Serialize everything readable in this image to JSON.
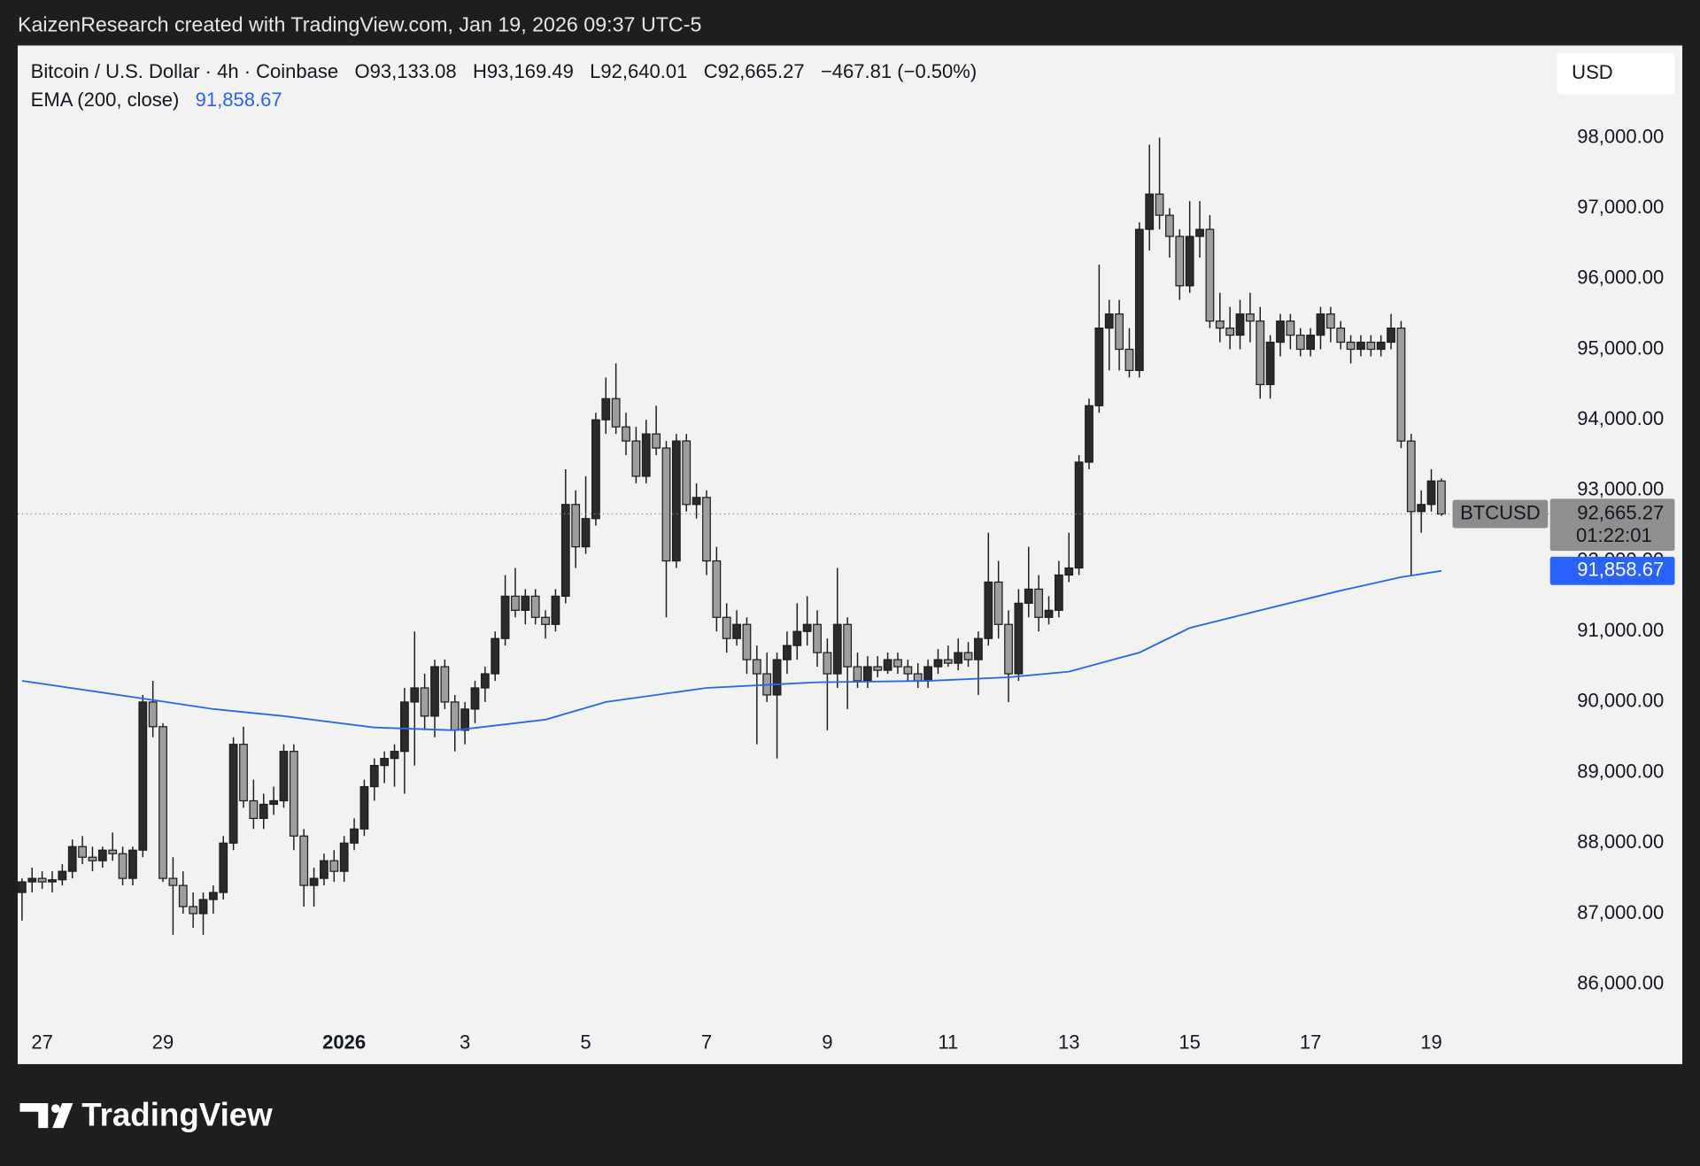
{
  "header": "KaizenResearch created with TradingView.com, Jan 19, 2026 09:37 UTC-5",
  "brand": "TradingView",
  "currency": "USD",
  "chart_data": {
    "type": "candlestick",
    "legend": {
      "title": "Bitcoin / U.S. Dollar · 4h · Coinbase",
      "open": "O93,133.08",
      "high": "H93,169.49",
      "low": "L92,640.01",
      "close": "C92,665.27",
      "change": "−467.81 (−0.50%)"
    },
    "symbol": "BTCUSD",
    "last_price_label": "92,665.27",
    "countdown": "01:22:01",
    "up_color": "#2b2b2b",
    "down_color": "#9e9e9e",
    "candles": [
      [
        87300,
        87500,
        86900,
        87450
      ],
      [
        87450,
        87650,
        87300,
        87500
      ],
      [
        87500,
        87600,
        87350,
        87450
      ],
      [
        87450,
        87600,
        87300,
        87480
      ],
      [
        87480,
        87700,
        87400,
        87600
      ],
      [
        87600,
        88050,
        87500,
        87950
      ],
      [
        87950,
        88100,
        87700,
        87800
      ],
      [
        87800,
        87950,
        87600,
        87750
      ],
      [
        87750,
        87950,
        87650,
        87900
      ],
      [
        87900,
        88150,
        87750,
        87850
      ],
      [
        87850,
        87950,
        87400,
        87500
      ],
      [
        87500,
        87950,
        87400,
        87900
      ],
      [
        87900,
        90100,
        87800,
        90000
      ],
      [
        90000,
        90300,
        89500,
        89650
      ],
      [
        89650,
        89700,
        87450,
        87500
      ],
      [
        87500,
        87800,
        86700,
        87400
      ],
      [
        87400,
        87600,
        87000,
        87100
      ],
      [
        87100,
        87300,
        86800,
        87000
      ],
      [
        87000,
        87300,
        86700,
        87200
      ],
      [
        87200,
        87400,
        87000,
        87300
      ],
      [
        87300,
        88100,
        87200,
        88000
      ],
      [
        88000,
        89500,
        87900,
        89400
      ],
      [
        89400,
        89650,
        88500,
        88600
      ],
      [
        88600,
        88900,
        88200,
        88350
      ],
      [
        88350,
        88700,
        88200,
        88550
      ],
      [
        88550,
        88800,
        88400,
        88600
      ],
      [
        88600,
        89400,
        88500,
        89300
      ],
      [
        89300,
        89400,
        87900,
        88100
      ],
      [
        88100,
        88200,
        87100,
        87400
      ],
      [
        87400,
        87650,
        87100,
        87500
      ],
      [
        87500,
        87850,
        87400,
        87750
      ],
      [
        87750,
        87900,
        87450,
        87600
      ],
      [
        87600,
        88100,
        87450,
        88000
      ],
      [
        88000,
        88350,
        87900,
        88200
      ],
      [
        88200,
        88900,
        88100,
        88800
      ],
      [
        88800,
        89200,
        88600,
        89100
      ],
      [
        89100,
        89300,
        88850,
        89200
      ],
      [
        89200,
        89400,
        88800,
        89300
      ],
      [
        89300,
        90200,
        88700,
        90000
      ],
      [
        90000,
        91000,
        89100,
        90200
      ],
      [
        90200,
        90400,
        89600,
        89800
      ],
      [
        89800,
        90600,
        89500,
        90500
      ],
      [
        90500,
        90600,
        89900,
        90000
      ],
      [
        90000,
        90100,
        89300,
        89600
      ],
      [
        89600,
        90000,
        89400,
        89900
      ],
      [
        89900,
        90300,
        89700,
        90200
      ],
      [
        90200,
        90500,
        90000,
        90400
      ],
      [
        90400,
        91000,
        90300,
        90900
      ],
      [
        90900,
        91800,
        90800,
        91500
      ],
      [
        91500,
        91900,
        91200,
        91300
      ],
      [
        91300,
        91600,
        91100,
        91500
      ],
      [
        91500,
        91600,
        91100,
        91200
      ],
      [
        91200,
        91300,
        90900,
        91100
      ],
      [
        91100,
        91600,
        91000,
        91500
      ],
      [
        91500,
        93300,
        91400,
        92800
      ],
      [
        92800,
        93000,
        91900,
        92200
      ],
      [
        92200,
        93200,
        92100,
        92600
      ],
      [
        92600,
        94100,
        92500,
        94000
      ],
      [
        94000,
        94600,
        93800,
        94300
      ],
      [
        94300,
        94800,
        93800,
        93900
      ],
      [
        93900,
        94100,
        93500,
        93700
      ],
      [
        93700,
        93900,
        93100,
        93200
      ],
      [
        93200,
        94000,
        93100,
        93800
      ],
      [
        93800,
        94200,
        93500,
        93600
      ],
      [
        93600,
        93700,
        91200,
        92000
      ],
      [
        92000,
        93800,
        91900,
        93700
      ],
      [
        93700,
        93800,
        92700,
        92800
      ],
      [
        92800,
        93100,
        92600,
        92900
      ],
      [
        92900,
        93000,
        91800,
        92000
      ],
      [
        92000,
        92200,
        91000,
        91200
      ],
      [
        91200,
        91400,
        90700,
        90900
      ],
      [
        90900,
        91300,
        90800,
        91100
      ],
      [
        91100,
        91200,
        90400,
        90600
      ],
      [
        90600,
        90800,
        89400,
        90400
      ],
      [
        90400,
        90700,
        90000,
        90100
      ],
      [
        90100,
        90700,
        89200,
        90600
      ],
      [
        90600,
        91000,
        90400,
        90800
      ],
      [
        90800,
        91400,
        90600,
        91000
      ],
      [
        91000,
        91500,
        90800,
        91100
      ],
      [
        91100,
        91300,
        90500,
        90700
      ],
      [
        90700,
        90900,
        89600,
        90400
      ],
      [
        90400,
        91900,
        90200,
        91100
      ],
      [
        91100,
        91200,
        89900,
        90500
      ],
      [
        90500,
        90700,
        90200,
        90300
      ],
      [
        90300,
        90650,
        90200,
        90500
      ],
      [
        90500,
        90650,
        90350,
        90450
      ],
      [
        90450,
        90700,
        90400,
        90600
      ],
      [
        90600,
        90700,
        90400,
        90500
      ],
      [
        90500,
        90600,
        90300,
        90400
      ],
      [
        90400,
        90550,
        90200,
        90300
      ],
      [
        90300,
        90600,
        90200,
        90500
      ],
      [
        90500,
        90750,
        90400,
        90600
      ],
      [
        90600,
        90800,
        90500,
        90550
      ],
      [
        90550,
        90900,
        90450,
        90700
      ],
      [
        90700,
        90850,
        90500,
        90600
      ],
      [
        90600,
        91000,
        90100,
        90900
      ],
      [
        90900,
        92400,
        90800,
        91700
      ],
      [
        91700,
        92000,
        90900,
        91100
      ],
      [
        91100,
        91300,
        90000,
        90400
      ],
      [
        90400,
        91600,
        90300,
        91400
      ],
      [
        91400,
        92200,
        91200,
        91600
      ],
      [
        91600,
        91800,
        91000,
        91200
      ],
      [
        91200,
        91500,
        91100,
        91300
      ],
      [
        91300,
        92000,
        91200,
        91800
      ],
      [
        91800,
        92400,
        91700,
        91900
      ],
      [
        91900,
        93500,
        91800,
        93400
      ],
      [
        93400,
        94300,
        93300,
        94200
      ],
      [
        94200,
        96200,
        94100,
        95300
      ],
      [
        95300,
        95700,
        94700,
        95500
      ],
      [
        95500,
        95700,
        94700,
        95000
      ],
      [
        95000,
        95300,
        94600,
        94700
      ],
      [
        94700,
        96800,
        94600,
        96700
      ],
      [
        96700,
        97900,
        96400,
        97200
      ],
      [
        97200,
        98000,
        96700,
        96900
      ],
      [
        96900,
        97000,
        96300,
        96600
      ],
      [
        96600,
        96700,
        95700,
        95900
      ],
      [
        95900,
        97100,
        95800,
        96600
      ],
      [
        96600,
        97100,
        96300,
        96700
      ],
      [
        96700,
        96900,
        95300,
        95400
      ],
      [
        95400,
        95800,
        95100,
        95300
      ],
      [
        95300,
        95600,
        95000,
        95200
      ],
      [
        95200,
        95700,
        95000,
        95500
      ],
      [
        95500,
        95800,
        95100,
        95400
      ],
      [
        95400,
        95600,
        94300,
        94500
      ],
      [
        94500,
        95200,
        94300,
        95100
      ],
      [
        95100,
        95500,
        94900,
        95400
      ],
      [
        95400,
        95500,
        95000,
        95200
      ],
      [
        95200,
        95300,
        94900,
        95000
      ],
      [
        95000,
        95300,
        94900,
        95200
      ],
      [
        95200,
        95600,
        95000,
        95500
      ],
      [
        95500,
        95600,
        95100,
        95300
      ],
      [
        95300,
        95400,
        95000,
        95100
      ],
      [
        95100,
        95200,
        94800,
        95000
      ],
      [
        95000,
        95200,
        94900,
        95100
      ],
      [
        95100,
        95200,
        94900,
        95000
      ],
      [
        95000,
        95200,
        94900,
        95100
      ],
      [
        95100,
        95500,
        95000,
        95300
      ],
      [
        95300,
        95400,
        93600,
        93700
      ],
      [
        93700,
        93800,
        91800,
        92700
      ],
      [
        92700,
        93000,
        92400,
        92800
      ],
      [
        92800,
        93300,
        92700,
        93133.08
      ],
      [
        93133.08,
        93169.49,
        92640.01,
        92665.27
      ]
    ],
    "ema": {
      "name": "EMA (200, close)",
      "color": "#2962ff",
      "value_label": "91,858.67",
      "x": [
        0,
        12,
        19,
        26,
        35,
        43,
        52,
        58,
        68,
        79,
        90,
        98,
        104,
        111,
        116,
        123,
        131,
        137,
        141
      ],
      "values": [
        90300,
        90050,
        89900,
        89800,
        89640,
        89600,
        89750,
        90000,
        90200,
        90280,
        90300,
        90350,
        90430,
        90700,
        91050,
        91300,
        91580,
        91770,
        91858.67
      ]
    },
    "xlim": [
      -0.43,
      151.8
    ],
    "xticks": [
      {
        "value": 2,
        "label": "27"
      },
      {
        "value": 14,
        "label": "29"
      },
      {
        "value": 32,
        "label": "2026"
      },
      {
        "value": 44,
        "label": "3"
      },
      {
        "value": 56,
        "label": "5"
      },
      {
        "value": 68,
        "label": "7"
      },
      {
        "value": 80,
        "label": "9"
      },
      {
        "value": 92,
        "label": "11"
      },
      {
        "value": 104,
        "label": "13"
      },
      {
        "value": 116,
        "label": "15"
      },
      {
        "value": 128,
        "label": "17"
      },
      {
        "value": 140,
        "label": "19"
      }
    ],
    "ylim": [
      85435,
      99306
    ],
    "yticks": [
      {
        "value": 86000,
        "label": "86,000.00"
      },
      {
        "value": 87000,
        "label": "87,000.00"
      },
      {
        "value": 88000,
        "label": "88,000.00"
      },
      {
        "value": 89000,
        "label": "89,000.00"
      },
      {
        "value": 90000,
        "label": "90,000.00"
      },
      {
        "value": 91000,
        "label": "91,000.00"
      },
      {
        "value": 92000,
        "label": "92,000.00"
      },
      {
        "value": 93000,
        "label": "93,000.00"
      },
      {
        "value": 94000,
        "label": "94,000.00"
      },
      {
        "value": 95000,
        "label": "95,000.00"
      },
      {
        "value": 96000,
        "label": "96,000.00"
      },
      {
        "value": 97000,
        "label": "97,000.00"
      },
      {
        "value": 98000,
        "label": "98,000.00"
      }
    ]
  }
}
